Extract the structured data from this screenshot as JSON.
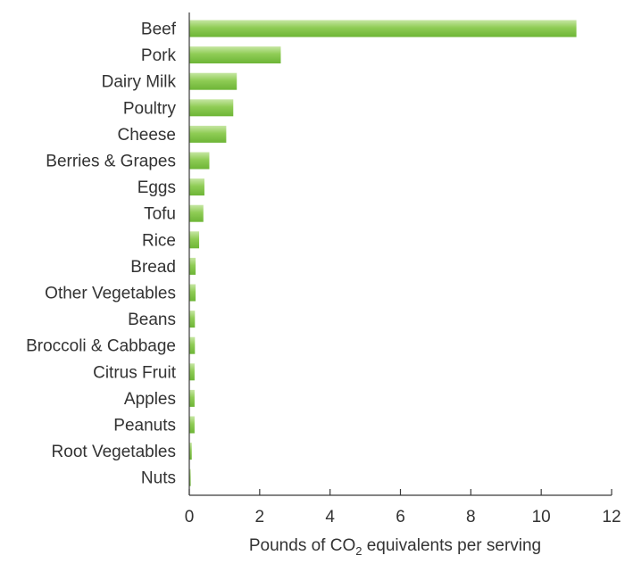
{
  "chart_data": {
    "type": "bar",
    "orientation": "horizontal",
    "categories": [
      "Beef",
      "Pork",
      "Dairy Milk",
      "Poultry",
      "Cheese",
      "Berries & Grapes",
      "Eggs",
      "Tofu",
      "Rice",
      "Bread",
      "Other Vegetables",
      "Beans",
      "Broccoli & Cabbage",
      "Citrus Fruit",
      "Apples",
      "Peanuts",
      "Root Vegetables",
      "Nuts"
    ],
    "values": [
      11.0,
      2.6,
      1.35,
      1.25,
      1.05,
      0.57,
      0.43,
      0.4,
      0.28,
      0.18,
      0.18,
      0.16,
      0.16,
      0.15,
      0.15,
      0.15,
      0.07,
      0.04
    ],
    "title": "",
    "xlabel": {
      "pre": "Pounds of CO",
      "sub": "2",
      "post": " equivalents per serving"
    },
    "ylabel": "",
    "xlim": [
      0,
      12
    ],
    "xticks": [
      0,
      2,
      4,
      6,
      8,
      10,
      12
    ],
    "grid": false,
    "bar_color": "#7bc143"
  }
}
